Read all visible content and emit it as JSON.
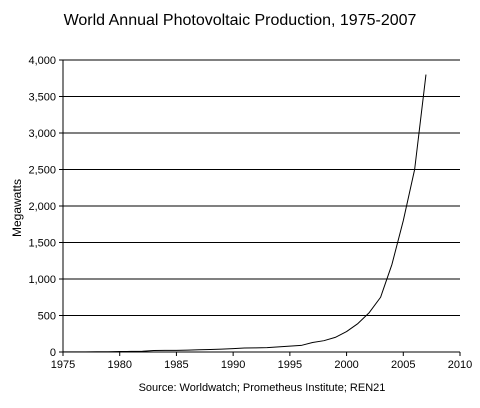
{
  "chart_data": {
    "type": "line",
    "title": "World Annual Photovoltaic Production, 1975-2007",
    "xlabel": "",
    "ylabel": "Megawatts",
    "source": "Source: Worldwatch; Prometheus Institute; REN21",
    "xlim": [
      1975,
      2010
    ],
    "ylim": [
      0,
      4000
    ],
    "xticks": [
      1975,
      1980,
      1985,
      1990,
      1995,
      2000,
      2005,
      2010
    ],
    "yticks": [
      0,
      500,
      1000,
      1500,
      2000,
      2500,
      3000,
      3500,
      4000
    ],
    "xtick_labels": [
      "1975",
      "1980",
      "1985",
      "1990",
      "1995",
      "2000",
      "2005",
      "2010"
    ],
    "ytick_labels": [
      "0",
      "500",
      "1,000",
      "1,500",
      "2,000",
      "2,500",
      "3,000",
      "3,500",
      "4,000"
    ],
    "grid": "horizontal",
    "line_color": "#000000",
    "series": [
      {
        "x": [
          1975,
          1976,
          1977,
          1978,
          1979,
          1980,
          1981,
          1982,
          1983,
          1984,
          1985,
          1986,
          1987,
          1988,
          1989,
          1990,
          1991,
          1992,
          1993,
          1994,
          1995,
          1996,
          1997,
          1998,
          1999,
          2000,
          2001,
          2002,
          2003,
          2004,
          2005,
          2006,
          2007
        ],
        "y": [
          2,
          2,
          2,
          3,
          4,
          7,
          8,
          10,
          20,
          22,
          23,
          25,
          30,
          35,
          40,
          47,
          55,
          57,
          60,
          70,
          80,
          90,
          130,
          155,
          200,
          280,
          390,
          540,
          750,
          1200,
          1800,
          2500,
          3800
        ]
      }
    ]
  }
}
